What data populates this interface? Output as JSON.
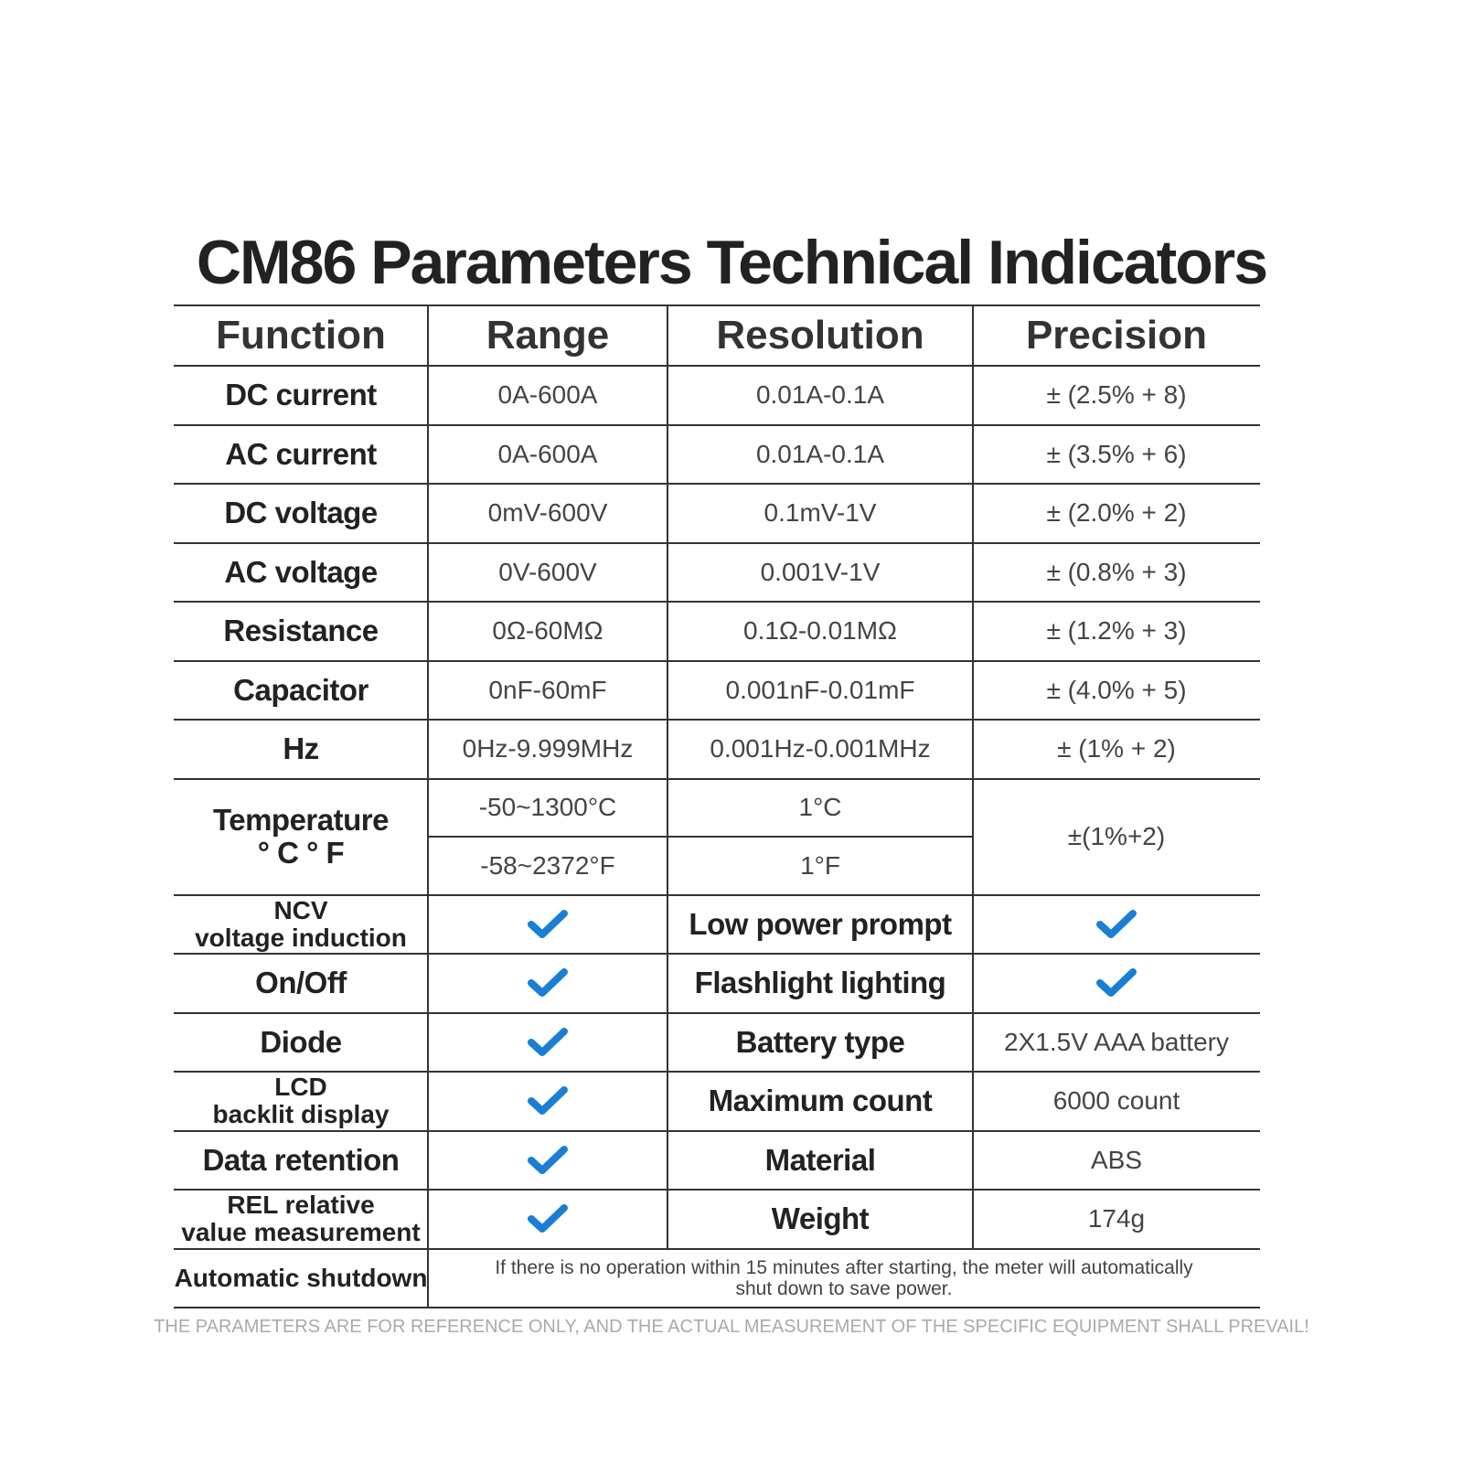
{
  "title": "CM86 Parameters Technical Indicators",
  "table": {
    "header": [
      "Function",
      "Range",
      "Resolution",
      "Precision"
    ],
    "rows": [
      [
        "DC current",
        "0A-600A",
        "0.01A-0.1A",
        "± (2.5% + 8)"
      ],
      [
        "AC current",
        "0A-600A",
        "0.01A-0.1A",
        "± (3.5% + 6)"
      ],
      [
        "DC voltage",
        "0mV-600V",
        "0.1mV-1V",
        "± (2.0% + 2)"
      ],
      [
        "AC voltage",
        "0V-600V",
        "0.001V-1V",
        "± (0.8% + 3)"
      ],
      [
        "Resistance",
        "0Ω-60MΩ",
        "0.1Ω-0.01MΩ",
        "± (1.2% + 3)"
      ],
      [
        "Capacitor",
        "0nF-60mF",
        "0.001nF-0.01mF",
        "± (4.0% + 5)"
      ],
      [
        "Hz",
        "0Hz-9.999MHz",
        "0.001Hz-0.001MHz",
        "± (1% + 2)"
      ]
    ],
    "temperature": {
      "function": [
        "Temperature",
        "° C ° F"
      ],
      "ranges": [
        "-50~1300°C",
        "-58~2372°F"
      ],
      "resolutions": [
        "1°C",
        "1°F"
      ],
      "precision": "±(1%+2)"
    },
    "features": [
      {
        "name": [
          "NCV",
          "voltage induction"
        ],
        "item": "Low power prompt"
      },
      {
        "name": [
          "On/Off"
        ],
        "item": "Flashlight lighting"
      },
      {
        "name": [
          "Diode"
        ],
        "item": "Battery type",
        "value": "2X1.5V AAA battery"
      },
      {
        "name": [
          "LCD",
          "backlit display"
        ],
        "item": "Maximum count",
        "value": "6000 count"
      },
      {
        "name": [
          "Data retention"
        ],
        "item": "Material",
        "value": "ABS"
      },
      {
        "name": [
          "REL relative",
          "value measurement"
        ],
        "item": "Weight",
        "value": "174g"
      }
    ],
    "shutdown": {
      "name": "Automatic shutdown",
      "note": [
        "If there is no operation within 15 minutes after starting, the meter will automatically",
        "shut down to save power."
      ]
    }
  },
  "footer": "THE PARAMETERS ARE FOR REFERENCE ONLY, AND THE ACTUAL MEASUREMENT OF THE SPECIFIC EQUIPMENT SHALL PREVAIL!"
}
